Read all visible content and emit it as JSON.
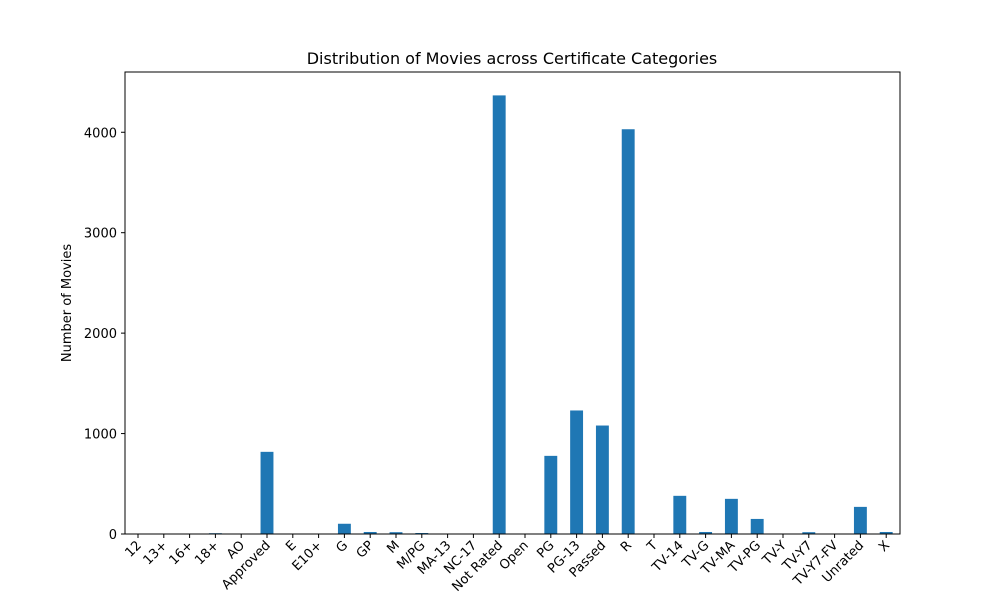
{
  "chart_data": {
    "type": "bar",
    "title": "Distribution of Movies across Certificate Categories",
    "xlabel": "",
    "ylabel": "Number of Movies",
    "categories": [
      "12",
      "13+",
      "16+",
      "18+",
      "AO",
      "Approved",
      "E",
      "E10+",
      "G",
      "GP",
      "M",
      "M/PG",
      "MA-13",
      "NC-17",
      "Not Rated",
      "Open",
      "PG",
      "PG-13",
      "Passed",
      "R",
      "T",
      "TV-14",
      "TV-G",
      "TV-MA",
      "TV-PG",
      "TV-Y",
      "TV-Y7",
      "TV-Y7-FV",
      "Unrated",
      "X"
    ],
    "values": [
      1,
      2,
      2,
      8,
      1,
      818,
      1,
      1,
      102,
      20,
      18,
      10,
      1,
      3,
      4367,
      1,
      778,
      1230,
      1080,
      4030,
      1,
      380,
      20,
      350,
      150,
      3,
      18,
      2,
      270,
      20
    ],
    "ylim": [
      0,
      4600
    ],
    "yticks": [
      0,
      1000,
      2000,
      3000,
      4000
    ],
    "bar_color": "#1f77b4",
    "grid": false,
    "legend": "none"
  }
}
